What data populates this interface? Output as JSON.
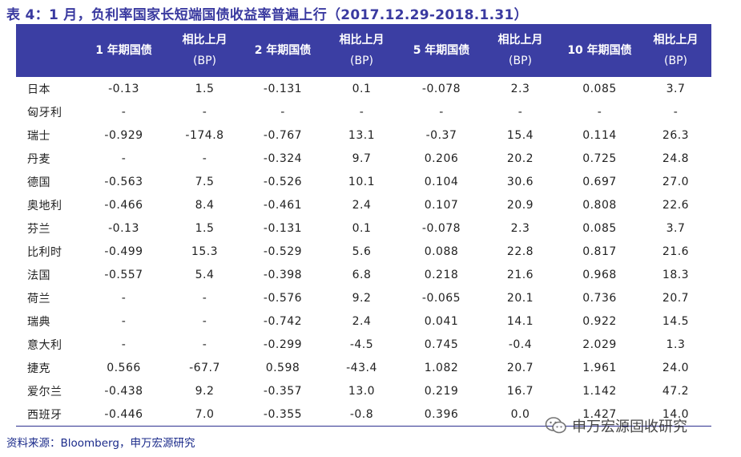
{
  "title": "表 4：1 月，负利率国家长短端国债收益率普遍上行（2017.12.29-2018.1.31）",
  "headers": [
    {
      "line1": "",
      "line2": ""
    },
    {
      "line1": "1 年期国债",
      "line2": ""
    },
    {
      "line1": "相比上月",
      "line2": "(BP)"
    },
    {
      "line1": "2 年期国债",
      "line2": ""
    },
    {
      "line1": "相比上月",
      "line2": "(BP)"
    },
    {
      "line1": "5 年期国债",
      "line2": ""
    },
    {
      "line1": "相比上月",
      "line2": "(BP)"
    },
    {
      "line1": "10 年期国债",
      "line2": ""
    },
    {
      "line1": "相比上月",
      "line2": "(BP)"
    }
  ],
  "rows": [
    [
      "日本",
      "-0.13",
      "1.5",
      "-0.131",
      "0.1",
      "-0.078",
      "2.3",
      "0.085",
      "3.7"
    ],
    [
      "匈牙利",
      "-",
      "-",
      "-",
      "-",
      "-",
      "-",
      "-",
      "-"
    ],
    [
      "瑞士",
      "-0.929",
      "-174.8",
      "-0.767",
      "13.1",
      "-0.37",
      "15.4",
      "0.114",
      "26.3"
    ],
    [
      "丹麦",
      "-",
      "-",
      "-0.324",
      "9.7",
      "0.206",
      "20.2",
      "0.725",
      "24.8"
    ],
    [
      "德国",
      "-0.563",
      "7.5",
      "-0.526",
      "10.1",
      "0.104",
      "30.6",
      "0.697",
      "27.0"
    ],
    [
      "奥地利",
      "-0.466",
      "8.4",
      "-0.461",
      "2.4",
      "0.107",
      "20.9",
      "0.808",
      "22.6"
    ],
    [
      "芬兰",
      "-0.13",
      "1.5",
      "-0.131",
      "0.1",
      "-0.078",
      "2.3",
      "0.085",
      "3.7"
    ],
    [
      "比利时",
      "-0.499",
      "15.3",
      "-0.529",
      "5.6",
      "0.088",
      "22.8",
      "0.817",
      "21.6"
    ],
    [
      "法国",
      "-0.557",
      "5.4",
      "-0.398",
      "6.8",
      "0.218",
      "21.6",
      "0.968",
      "18.3"
    ],
    [
      "荷兰",
      "-",
      "-",
      "-0.576",
      "9.2",
      "-0.065",
      "20.1",
      "0.736",
      "20.7"
    ],
    [
      "瑞典",
      "-",
      "-",
      "-0.742",
      "2.4",
      "0.041",
      "14.1",
      "0.922",
      "14.5"
    ],
    [
      "意大利",
      "-",
      "-",
      "-0.299",
      "-4.5",
      "0.745",
      "-0.4",
      "2.029",
      "1.3"
    ],
    [
      "捷克",
      "0.566",
      "-67.7",
      "0.598",
      "-43.4",
      "1.082",
      "20.7",
      "1.961",
      "24.0"
    ],
    [
      "爱尔兰",
      "-0.438",
      "9.2",
      "-0.357",
      "13.0",
      "0.219",
      "16.7",
      "1.142",
      "47.2"
    ],
    [
      "西班牙",
      "-0.446",
      "7.0",
      "-0.355",
      "-0.8",
      "0.396",
      "0.0",
      "1.427",
      "14.0"
    ]
  ],
  "source": "资料来源：Bloomberg，申万宏源研究",
  "watermark": {
    "text": "申万宏源固收研究",
    "icon": "wechat-icon"
  },
  "colors": {
    "header_bg": "#3b3ea3",
    "title": "#3a3aa0",
    "source": "#1a2a8a"
  }
}
